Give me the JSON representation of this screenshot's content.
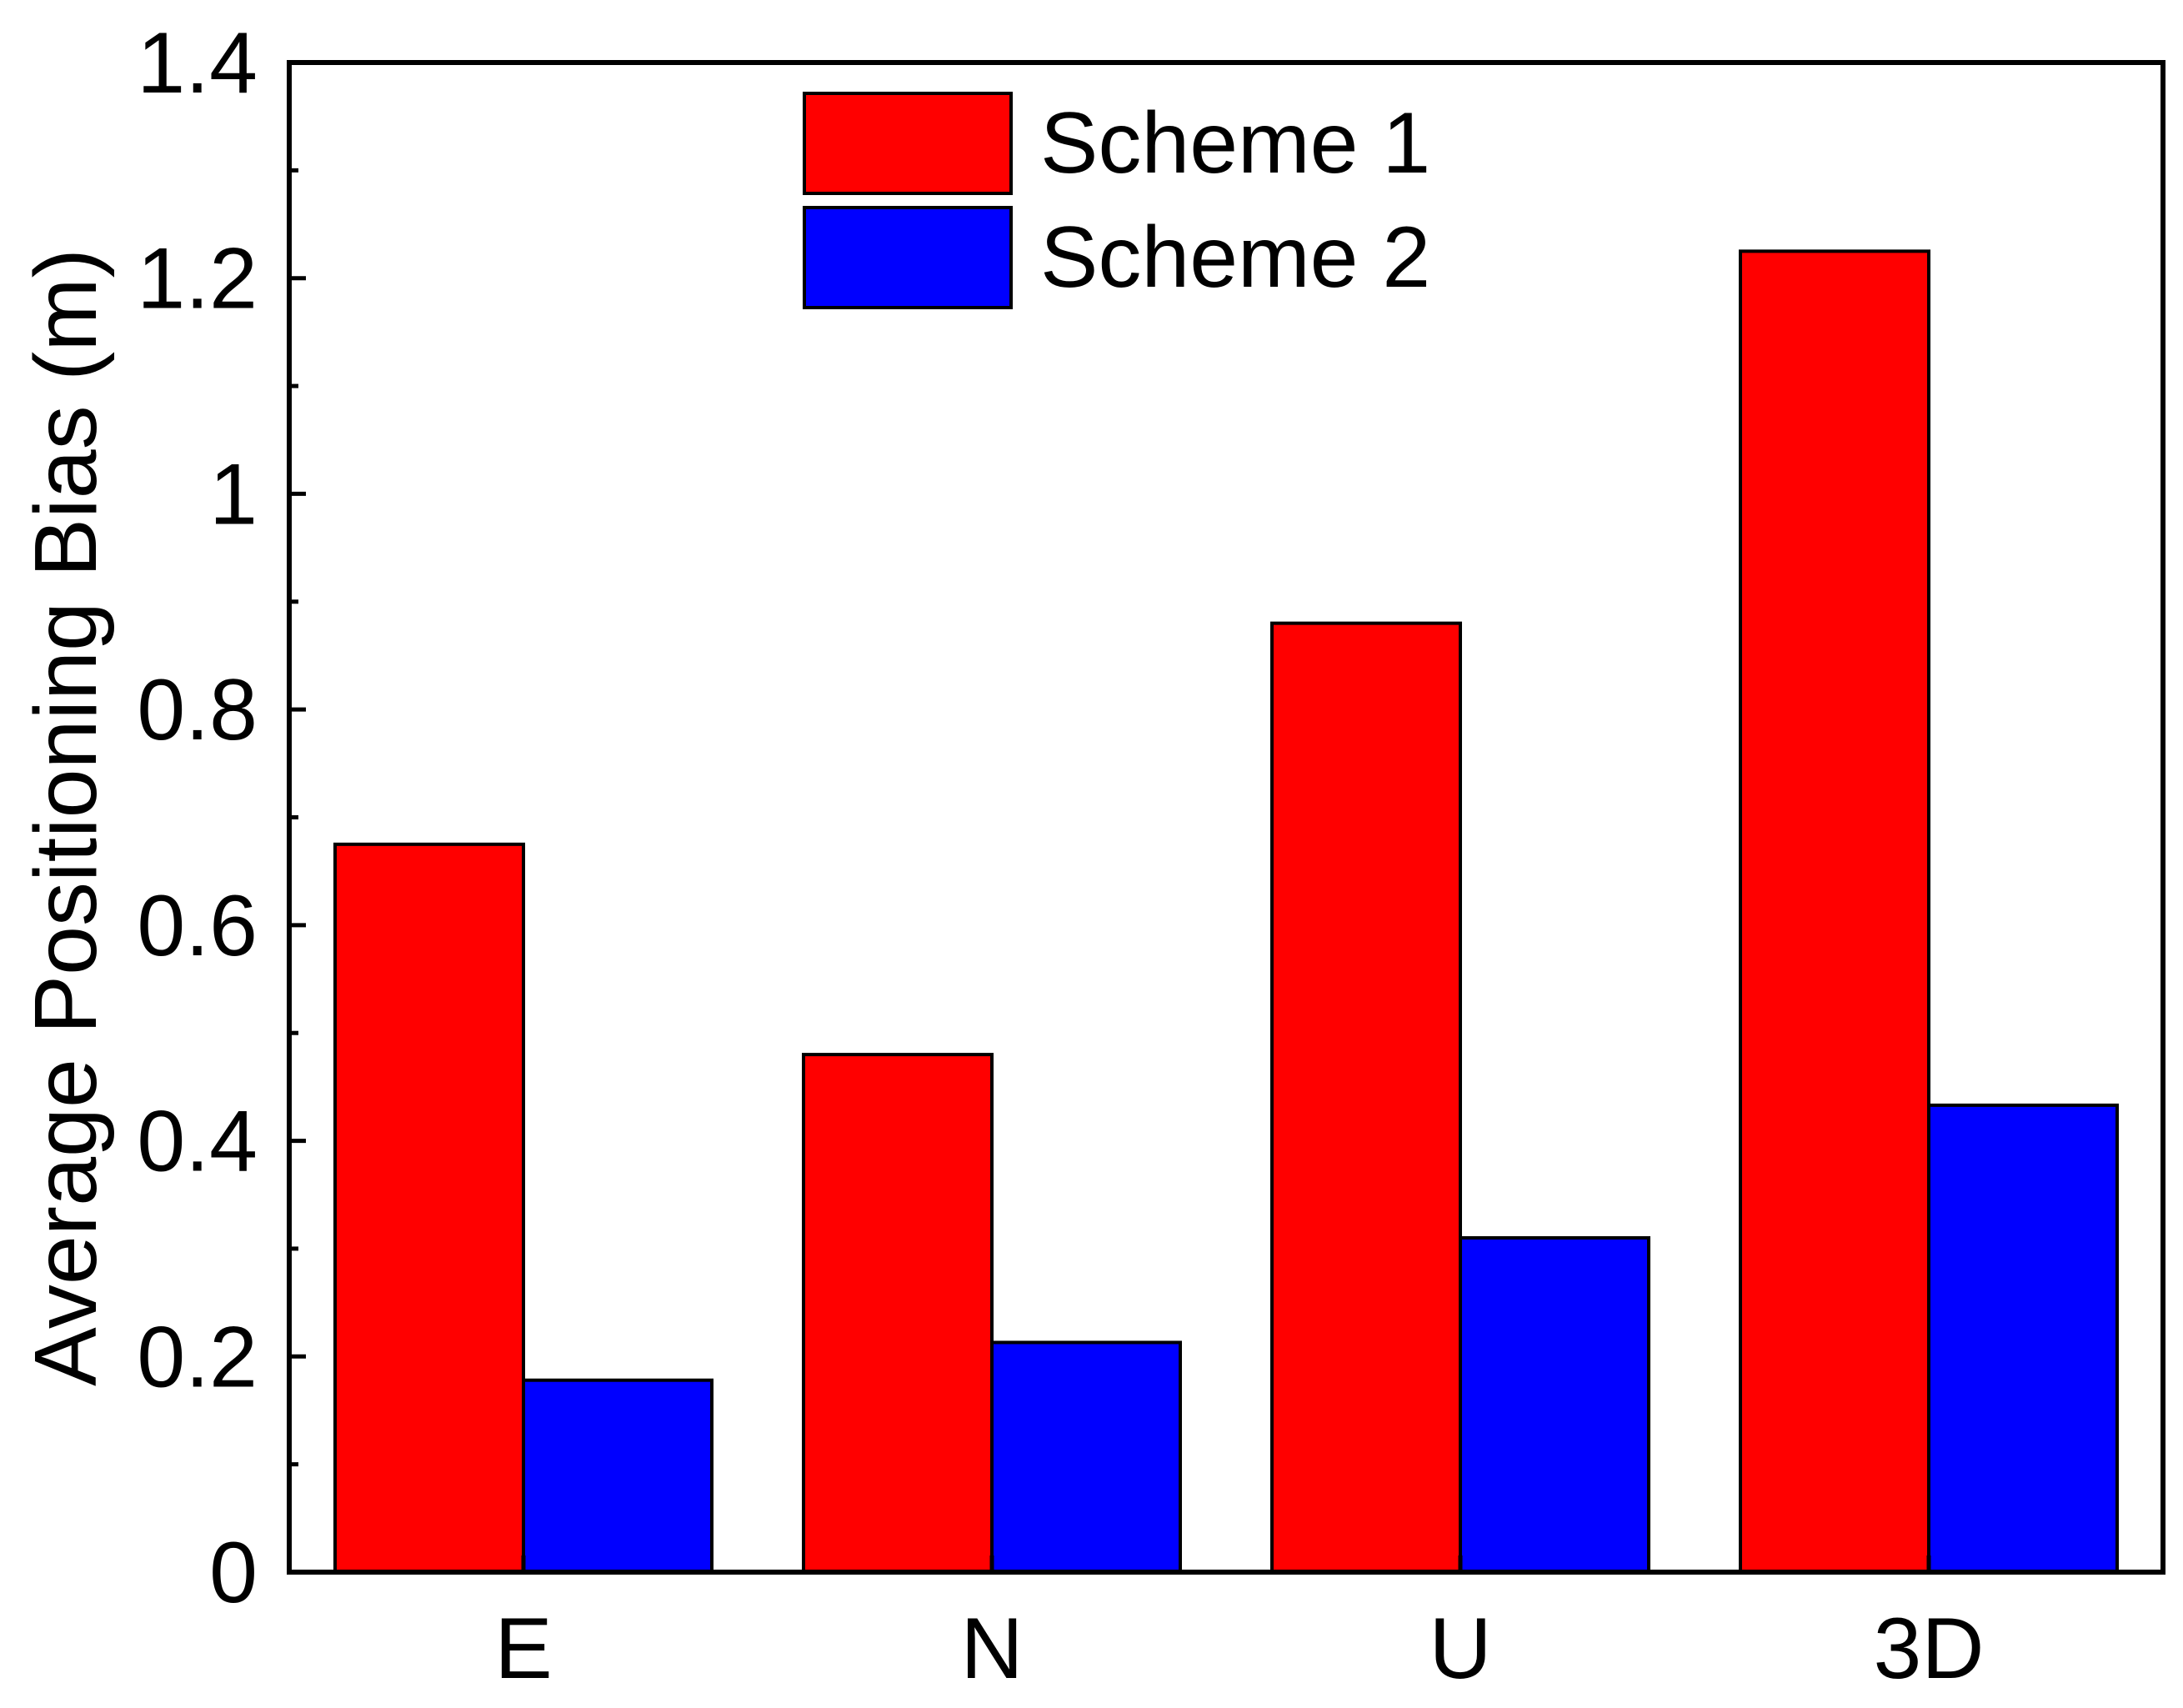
{
  "chart_data": {
    "type": "bar",
    "title": "",
    "xlabel": "",
    "ylabel": "Average Positioning Bias (m)",
    "categories": [
      "E",
      "N",
      "U",
      "3D"
    ],
    "series": [
      {
        "name": "Scheme 1",
        "color": "#ff0000",
        "values": [
          0.675,
          0.48,
          0.88,
          1.225
        ]
      },
      {
        "name": "Scheme 2",
        "color": "#0000ff",
        "values": [
          0.178,
          0.213,
          0.31,
          0.433
        ]
      }
    ],
    "ylim": [
      0,
      1.4
    ],
    "yticks": [
      "0",
      "0.2",
      "0.4",
      "0.6",
      "0.8",
      "1",
      "1.2",
      "1.4"
    ],
    "ytick_values": [
      0,
      0.2,
      0.4,
      0.6,
      0.8,
      1.0,
      1.2,
      1.4
    ],
    "y_minor_ticks": true,
    "grid": false,
    "legend_position": "top-center"
  }
}
